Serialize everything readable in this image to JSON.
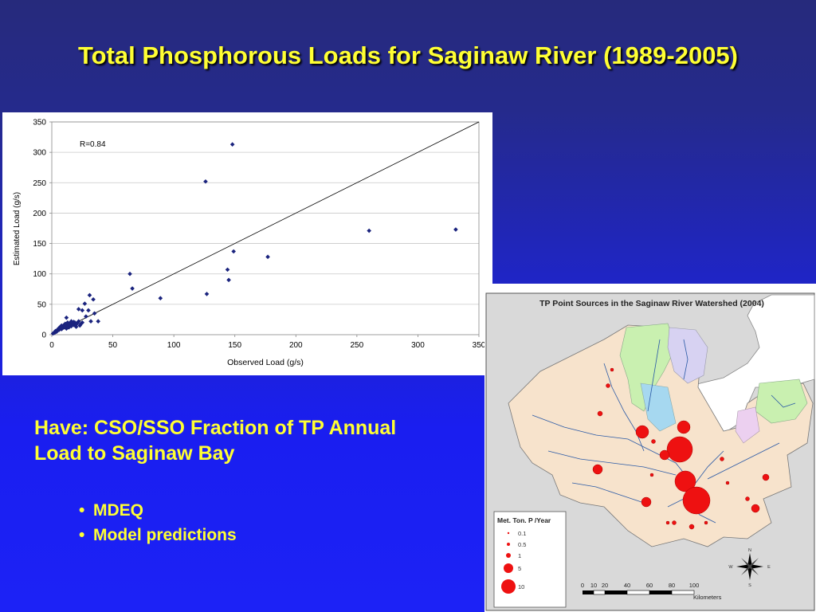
{
  "slide": {
    "title": "Total Phosphorous Loads for Saginaw River (1989-2005)",
    "have_text": "Have: CSO/SSO Fraction of TP Annual Load to Saginaw Bay",
    "bullets": [
      "MDEQ",
      "Model predictions"
    ]
  },
  "chart_data": {
    "type": "scatter",
    "title": "",
    "xlabel": "Observed Load (g/s)",
    "ylabel": "Estimated Load (g/s)",
    "annotation": "R=0.84",
    "xlim": [
      0,
      350
    ],
    "ylim": [
      0,
      350
    ],
    "xticks": [
      0,
      50,
      100,
      150,
      200,
      250,
      300,
      350
    ],
    "yticks": [
      0,
      50,
      100,
      150,
      200,
      250,
      300,
      350
    ],
    "grid": true,
    "reference_line": [
      [
        0,
        0
      ],
      [
        350,
        350
      ]
    ],
    "marker_color": "#1a237e",
    "points": [
      [
        1,
        2
      ],
      [
        2,
        3
      ],
      [
        3,
        4
      ],
      [
        3,
        6
      ],
      [
        4,
        5
      ],
      [
        5,
        7
      ],
      [
        5,
        9
      ],
      [
        6,
        8
      ],
      [
        6,
        11
      ],
      [
        7,
        10
      ],
      [
        7,
        13
      ],
      [
        8,
        9
      ],
      [
        8,
        12
      ],
      [
        8,
        15
      ],
      [
        9,
        11
      ],
      [
        9,
        14
      ],
      [
        10,
        12
      ],
      [
        10,
        16
      ],
      [
        11,
        13
      ],
      [
        11,
        18
      ],
      [
        12,
        10
      ],
      [
        12,
        15
      ],
      [
        13,
        14
      ],
      [
        13,
        20
      ],
      [
        14,
        12
      ],
      [
        14,
        17
      ],
      [
        15,
        15
      ],
      [
        15,
        19
      ],
      [
        16,
        14
      ],
      [
        16,
        22
      ],
      [
        17,
        18
      ],
      [
        18,
        16
      ],
      [
        18,
        21
      ],
      [
        19,
        20
      ],
      [
        20,
        17
      ],
      [
        20,
        13
      ],
      [
        21,
        19
      ],
      [
        22,
        22
      ],
      [
        23,
        15
      ],
      [
        24,
        18
      ],
      [
        25,
        20
      ],
      [
        12,
        28
      ],
      [
        22,
        42
      ],
      [
        25,
        40
      ],
      [
        27,
        51
      ],
      [
        28,
        30
      ],
      [
        30,
        40
      ],
      [
        31,
        65
      ],
      [
        32,
        22
      ],
      [
        34,
        58
      ],
      [
        35,
        35
      ],
      [
        38,
        22
      ],
      [
        64,
        100
      ],
      [
        66,
        76
      ],
      [
        89,
        60
      ],
      [
        126,
        252
      ],
      [
        127,
        67
      ],
      [
        144,
        107
      ],
      [
        145,
        90
      ],
      [
        148,
        313
      ],
      [
        149,
        137
      ],
      [
        177,
        128
      ],
      [
        260,
        171
      ],
      [
        331,
        173
      ]
    ]
  },
  "map": {
    "title": "TP Point Sources in the Saginaw River Watershed (2004)",
    "legend_title": "Met. Ton. P /Year",
    "legend_items": [
      "0.1",
      "0.5",
      "1",
      "5",
      "10"
    ],
    "scale_labels": [
      "0",
      "10",
      "20",
      "40",
      "60",
      "80",
      "100"
    ],
    "scale_unit": "Kilometers",
    "north_labels": [
      "N",
      "E",
      "S",
      "W"
    ],
    "point_color": "#ee1111"
  }
}
